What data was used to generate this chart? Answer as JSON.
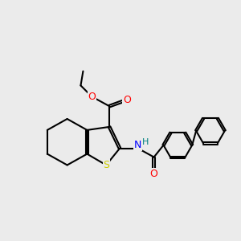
{
  "bg_color": "#ebebeb",
  "atom_colors": {
    "S": "#cccc00",
    "O": "#ff0000",
    "N": "#0000ff",
    "H": "#008080",
    "C": "#000000"
  },
  "bond_color": "#000000",
  "bond_width": 1.5,
  "figsize": [
    3.0,
    3.0
  ],
  "dpi": 100
}
